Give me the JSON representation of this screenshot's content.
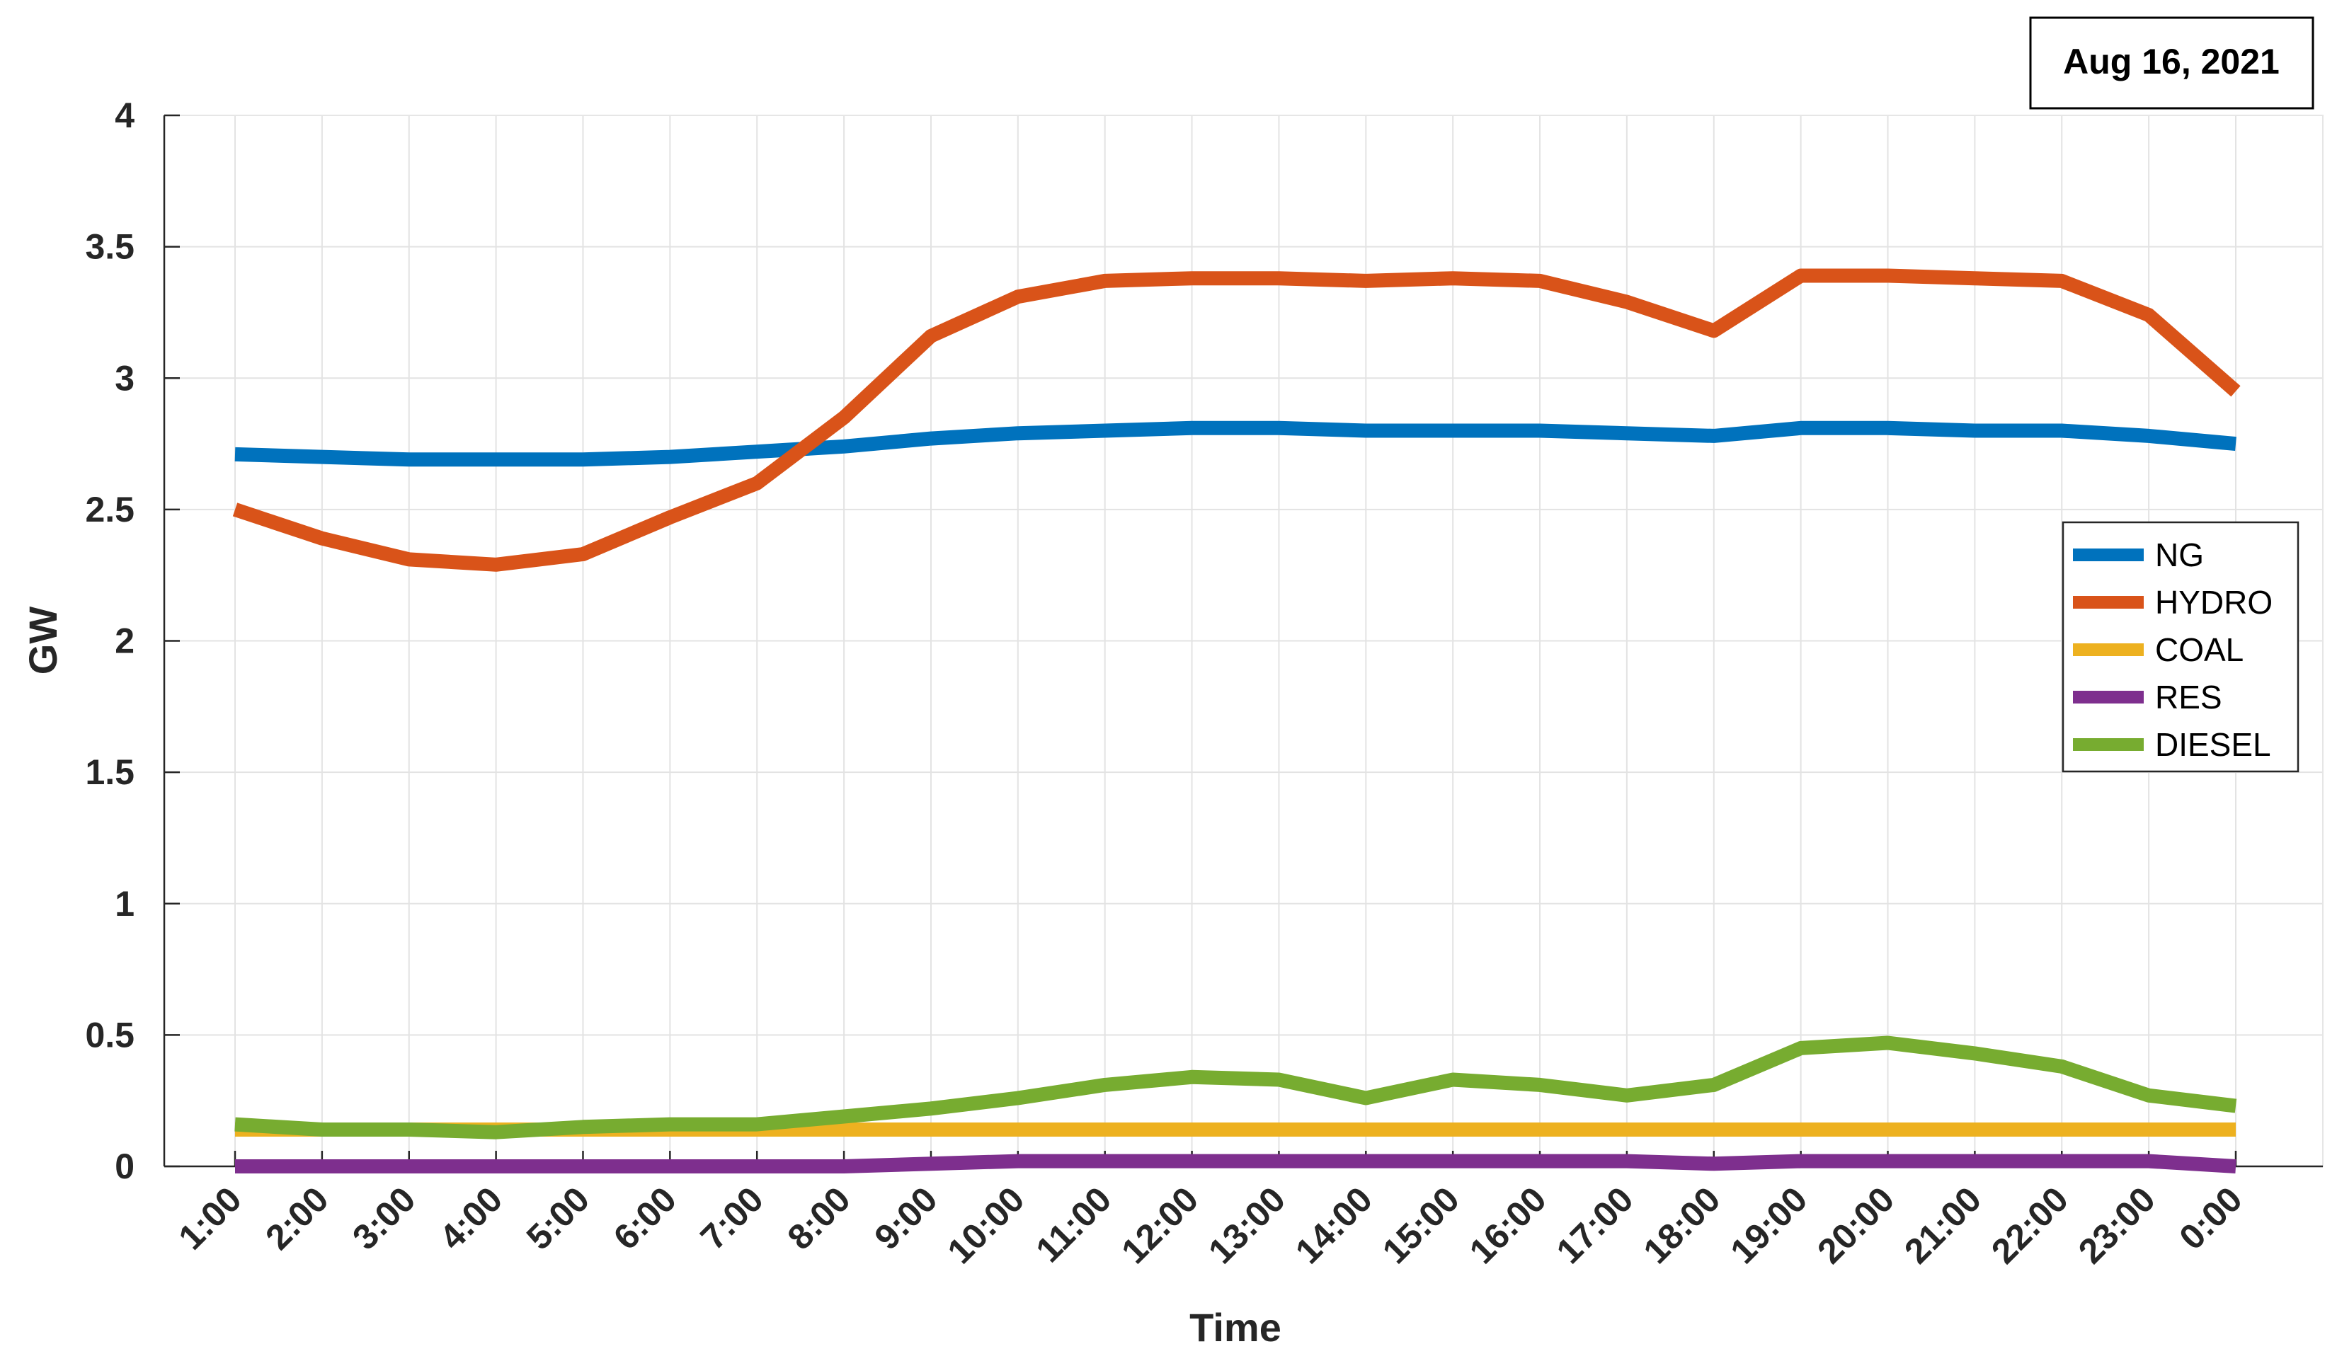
{
  "chart_data": {
    "type": "line",
    "title": "",
    "annotation": "Aug 16, 2021",
    "xlabel": "Time",
    "ylabel": "GW",
    "ylim": [
      0,
      4
    ],
    "yticks": [
      "0",
      "0.5",
      "1",
      "1.5",
      "2",
      "2.5",
      "3",
      "3.5",
      "4"
    ],
    "ytick_values": [
      0,
      0.5,
      1,
      1.5,
      2,
      2.5,
      3,
      3.5,
      4
    ],
    "categories": [
      "1:00",
      "2:00",
      "3:00",
      "4:00",
      "5:00",
      "6:00",
      "7:00",
      "8:00",
      "9:00",
      "10:00",
      "11:00",
      "12:00",
      "13:00",
      "14:00",
      "15:00",
      "16:00",
      "17:00",
      "18:00",
      "19:00",
      "20:00",
      "21:00",
      "22:00",
      "23:00",
      "0:00"
    ],
    "grid": true,
    "legend_position": "right",
    "series": [
      {
        "name": "NG",
        "color": "#0072BD",
        "values": [
          2.71,
          2.7,
          2.69,
          2.69,
          2.69,
          2.7,
          2.72,
          2.74,
          2.77,
          2.79,
          2.8,
          2.81,
          2.81,
          2.8,
          2.8,
          2.8,
          2.79,
          2.78,
          2.81,
          2.81,
          2.8,
          2.8,
          2.78,
          2.75
        ]
      },
      {
        "name": "HYDRO",
        "color": "#D95319",
        "values": [
          2.5,
          2.39,
          2.31,
          2.29,
          2.33,
          2.47,
          2.6,
          2.85,
          3.16,
          3.31,
          3.37,
          3.38,
          3.38,
          3.37,
          3.38,
          3.37,
          3.29,
          3.18,
          3.39,
          3.39,
          3.38,
          3.37,
          3.24,
          2.95
        ]
      },
      {
        "name": "COAL",
        "color": "#EDB120",
        "values": [
          0.14,
          0.14,
          0.14,
          0.14,
          0.14,
          0.14,
          0.14,
          0.14,
          0.14,
          0.14,
          0.14,
          0.14,
          0.14,
          0.14,
          0.14,
          0.14,
          0.14,
          0.14,
          0.14,
          0.14,
          0.14,
          0.14,
          0.14,
          0.14
        ]
      },
      {
        "name": "RES",
        "color": "#7E2F8E",
        "values": [
          0.0,
          0.0,
          0.0,
          0.0,
          0.0,
          0.0,
          0.0,
          0.0,
          0.01,
          0.02,
          0.02,
          0.02,
          0.02,
          0.02,
          0.02,
          0.02,
          0.02,
          0.01,
          0.02,
          0.02,
          0.02,
          0.02,
          0.02,
          0.0
        ]
      },
      {
        "name": "DIESEL",
        "color": "#77AC30",
        "values": [
          0.16,
          0.14,
          0.14,
          0.13,
          0.15,
          0.16,
          0.16,
          0.19,
          0.22,
          0.26,
          0.31,
          0.34,
          0.33,
          0.26,
          0.33,
          0.31,
          0.27,
          0.31,
          0.45,
          0.47,
          0.43,
          0.38,
          0.27,
          0.23
        ]
      }
    ]
  }
}
